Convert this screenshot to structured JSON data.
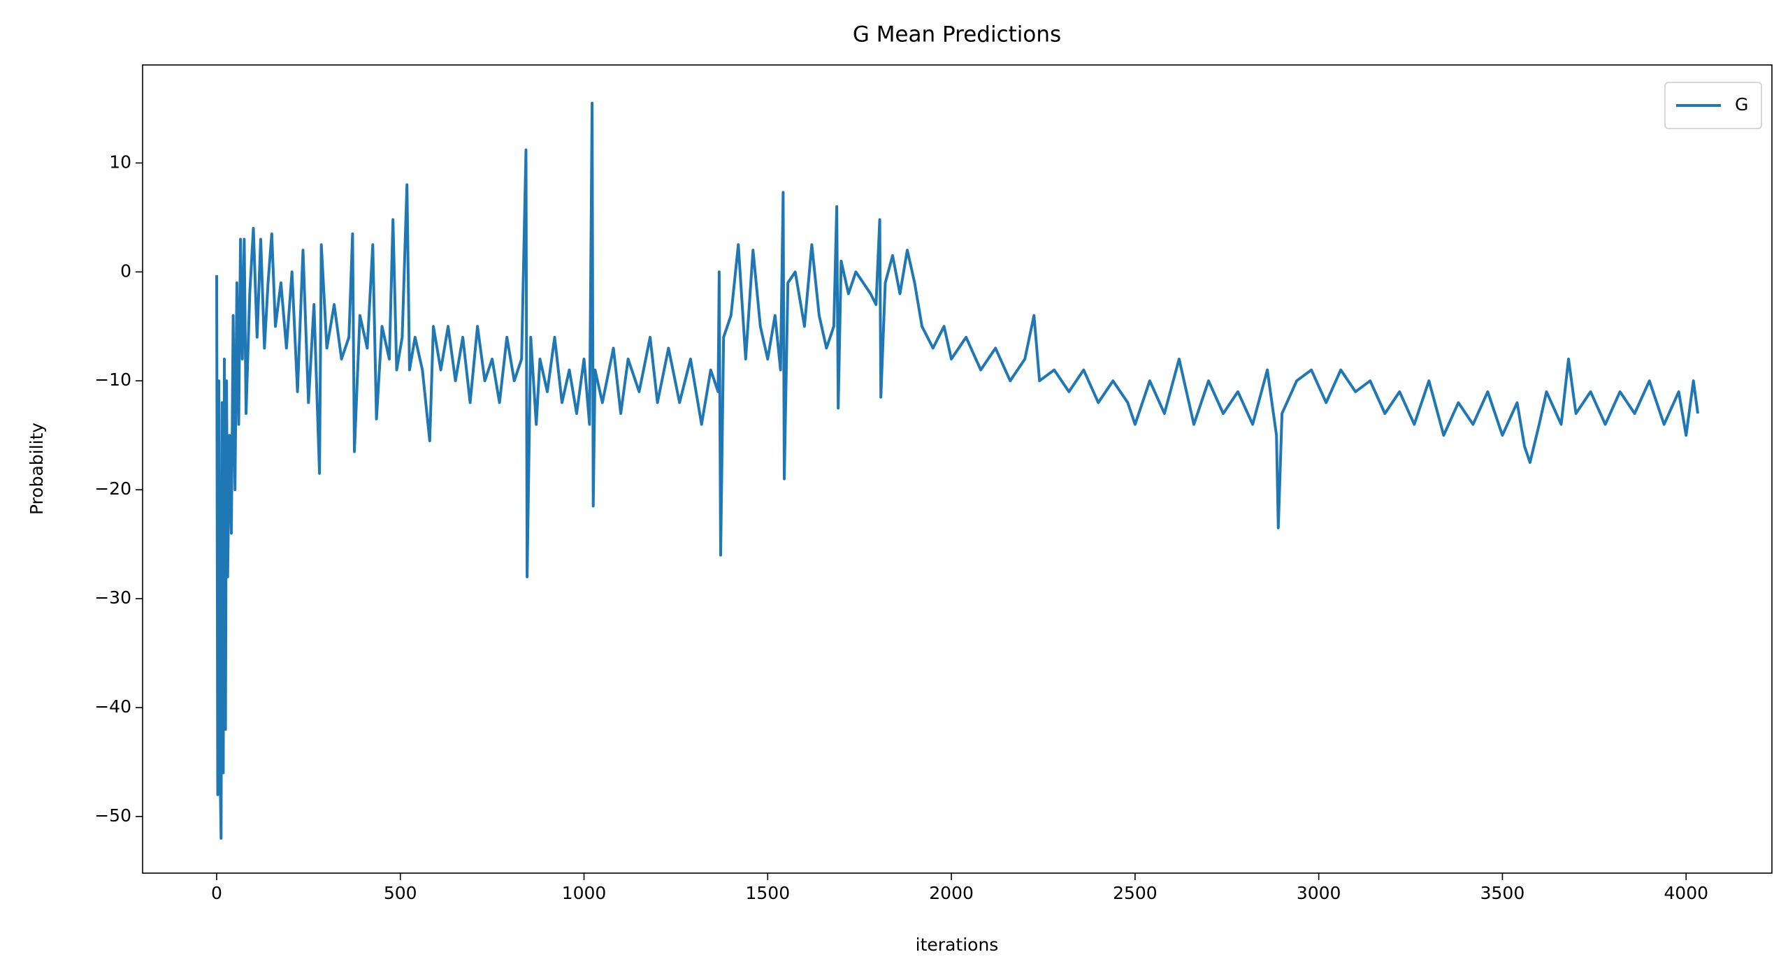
{
  "chart_data": {
    "type": "line",
    "title": "G Mean Predictions",
    "x_label": "iterations",
    "y_label": "Probability",
    "x": [
      0,
      3,
      6,
      9,
      12,
      15,
      18,
      21,
      24,
      27,
      30,
      35,
      40,
      45,
      50,
      55,
      60,
      65,
      70,
      75,
      80,
      90,
      100,
      110,
      120,
      130,
      140,
      150,
      160,
      175,
      190,
      205,
      220,
      235,
      250,
      265,
      280,
      285,
      300,
      320,
      340,
      360,
      370,
      375,
      390,
      410,
      425,
      435,
      450,
      470,
      480,
      490,
      505,
      518,
      525,
      540,
      560,
      580,
      590,
      610,
      630,
      650,
      670,
      690,
      710,
      730,
      750,
      770,
      790,
      810,
      830,
      842,
      845,
      855,
      870,
      880,
      900,
      920,
      940,
      960,
      980,
      1000,
      1015,
      1022,
      1025,
      1030,
      1050,
      1080,
      1100,
      1120,
      1150,
      1180,
      1200,
      1230,
      1260,
      1290,
      1320,
      1345,
      1365,
      1368,
      1372,
      1380,
      1400,
      1420,
      1440,
      1460,
      1480,
      1500,
      1520,
      1535,
      1542,
      1545,
      1555,
      1575,
      1600,
      1620,
      1640,
      1660,
      1680,
      1688,
      1692,
      1700,
      1720,
      1740,
      1760,
      1780,
      1795,
      1805,
      1808,
      1820,
      1840,
      1860,
      1880,
      1900,
      1920,
      1950,
      1980,
      2000,
      2040,
      2080,
      2120,
      2160,
      2200,
      2225,
      2240,
      2280,
      2320,
      2360,
      2400,
      2440,
      2480,
      2500,
      2540,
      2580,
      2620,
      2660,
      2700,
      2740,
      2780,
      2820,
      2860,
      2885,
      2890,
      2900,
      2940,
      2980,
      3020,
      3060,
      3100,
      3140,
      3180,
      3220,
      3260,
      3300,
      3340,
      3380,
      3420,
      3460,
      3500,
      3540,
      3560,
      3575,
      3600,
      3620,
      3660,
      3680,
      3700,
      3740,
      3780,
      3820,
      3860,
      3900,
      3940,
      3980,
      4000,
      4020,
      4032
    ],
    "series": [
      {
        "name": "G",
        "color": "#1f77b4",
        "values": [
          -0.3,
          -48,
          -10,
          -45,
          -52,
          -12,
          -46,
          -8,
          -42,
          -10,
          -28,
          -15,
          -24,
          -4,
          -20,
          -1,
          -14,
          3,
          -8,
          3,
          -13,
          -2,
          4,
          -6,
          3,
          -7,
          -1,
          3.5,
          -5,
          -1,
          -7,
          0,
          -11,
          2,
          -12,
          -3,
          -18.5,
          2.5,
          -7,
          -3,
          -8,
          -6,
          3.5,
          -16.5,
          -4,
          -7,
          2.5,
          -13.5,
          -5,
          -8,
          4.8,
          -9,
          -6,
          8,
          -9,
          -6,
          -9,
          -15.5,
          -5,
          -9,
          -5,
          -10,
          -6,
          -12,
          -5,
          -10,
          -8,
          -12,
          -6,
          -10,
          -8,
          11.2,
          -28,
          -6,
          -14,
          -8,
          -11,
          -6,
          -12,
          -9,
          -13,
          -8,
          -14,
          15.5,
          -21.5,
          -9,
          -12,
          -7,
          -13,
          -8,
          -11,
          -6,
          -12,
          -7,
          -12,
          -8,
          -14,
          -9,
          -11,
          0,
          -26,
          -6,
          -4,
          2.5,
          -8,
          2,
          -5,
          -8,
          -4,
          -9,
          7.3,
          -19,
          -1,
          0,
          -5,
          2.5,
          -4,
          -7,
          -5,
          6,
          -12.5,
          1,
          -2,
          0,
          -1,
          -2,
          -3,
          4.8,
          -11.5,
          -1,
          1.5,
          -2,
          2,
          -1,
          -5,
          -7,
          -5,
          -8,
          -6,
          -9,
          -7,
          -10,
          -8,
          -4,
          -10,
          -9,
          -11,
          -9,
          -12,
          -10,
          -12,
          -14,
          -10,
          -13,
          -8,
          -14,
          -10,
          -13,
          -11,
          -14,
          -9,
          -15,
          -23.5,
          -13,
          -10,
          -9,
          -12,
          -9,
          -11,
          -10,
          -13,
          -11,
          -14,
          -10,
          -15,
          -12,
          -14,
          -11,
          -15,
          -12,
          -16,
          -17.5,
          -14,
          -11,
          -14,
          -8,
          -13,
          -11,
          -14,
          -11,
          -13,
          -10,
          -14,
          -11,
          -15,
          -10,
          -13
        ]
      }
    ],
    "xlim": [
      -201.6,
      4233.6
    ],
    "xticks": [
      0,
      500,
      1000,
      1500,
      2000,
      2500,
      3000,
      3500,
      4000
    ],
    "ylim": [
      -55.2,
      19.0
    ],
    "yticks": [
      {
        "value": -50,
        "label": "−50"
      },
      {
        "value": -40,
        "label": "−40"
      },
      {
        "value": -30,
        "label": "−30"
      },
      {
        "value": -20,
        "label": "−20"
      },
      {
        "value": -10,
        "label": "−10"
      },
      0,
      10
    ],
    "legend": "upper right"
  }
}
